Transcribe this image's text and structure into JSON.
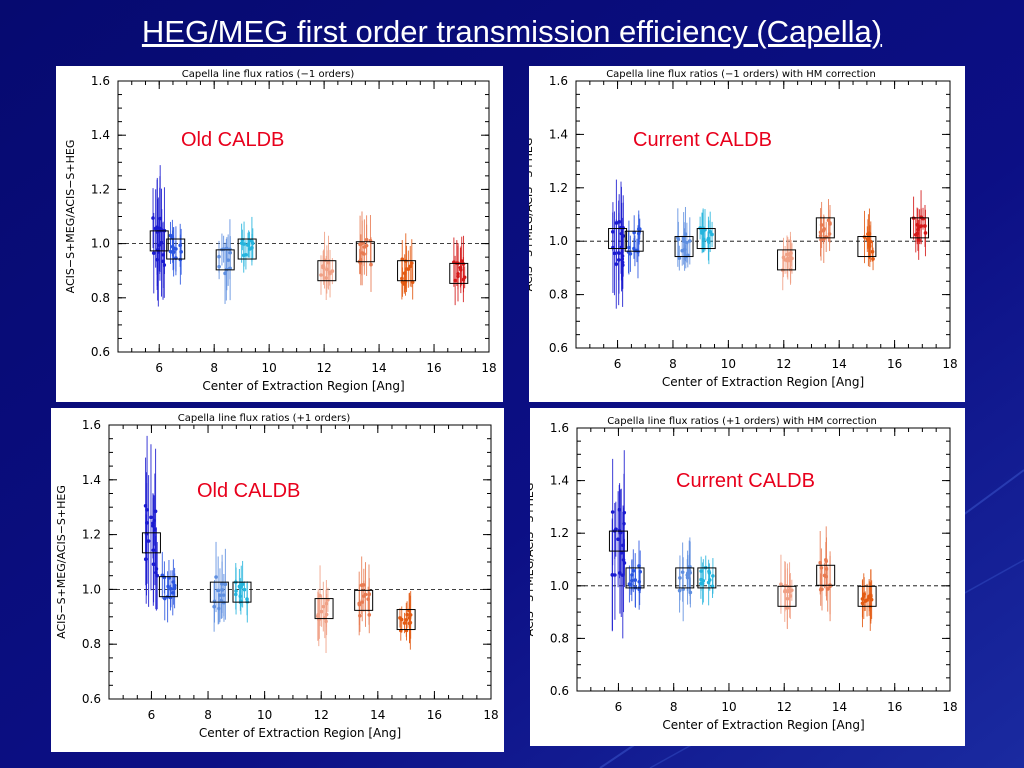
{
  "slide": {
    "title": "HEG/MEG first order transmission efficiency (Capella)",
    "background_color": "#0a0a78",
    "title_color": "#ffffff"
  },
  "annotation_color": "#e8001c",
  "chart_data": [
    {
      "type": "scatter",
      "title": "Capella line flux ratios (−1 orders)",
      "annotation": "Old CALDB",
      "xlabel": "Center of Extraction Region [Ang]",
      "ylabel": "ACIS−S+MEG/ACIS−S+HEG",
      "xlim": [
        4.5,
        18
      ],
      "ylim": [
        0.6,
        1.6
      ],
      "xticks": [
        6,
        8,
        10,
        12,
        14,
        16,
        18
      ],
      "yticks": [
        0.6,
        0.8,
        1.0,
        1.2,
        1.4,
        1.6
      ],
      "reference_line": 1.0,
      "groups": [
        {
          "x": 6.0,
          "mean": 1.01,
          "spread": 0.1,
          "err": 0.14,
          "color": "#1a1ad0"
        },
        {
          "x": 6.6,
          "mean": 0.98,
          "spread": 0.05,
          "err": 0.07,
          "color": "#2a55e0"
        },
        {
          "x": 8.4,
          "mean": 0.94,
          "spread": 0.05,
          "err": 0.08,
          "color": "#5f8fe0"
        },
        {
          "x": 9.2,
          "mean": 0.98,
          "spread": 0.04,
          "err": 0.06,
          "color": "#25b4dd"
        },
        {
          "x": 12.1,
          "mean": 0.9,
          "spread": 0.04,
          "err": 0.07,
          "color": "#f0a085"
        },
        {
          "x": 13.5,
          "mean": 0.97,
          "spread": 0.05,
          "err": 0.08,
          "color": "#e87b52"
        },
        {
          "x": 15.0,
          "mean": 0.9,
          "spread": 0.05,
          "err": 0.07,
          "color": "#e35a12"
        },
        {
          "x": 16.9,
          "mean": 0.89,
          "spread": 0.05,
          "err": 0.07,
          "color": "#d41818"
        }
      ]
    },
    {
      "type": "scatter",
      "title": "Capella line flux ratios (−1 orders) with HM correction",
      "annotation": "Current CALDB",
      "xlabel": "Center of Extraction Region [Ang]",
      "ylabel": "ACIS−S+MEG/ACIS−S+HEG",
      "xlim": [
        4.5,
        18
      ],
      "ylim": [
        0.6,
        1.6
      ],
      "xticks": [
        6,
        8,
        10,
        12,
        14,
        16,
        18
      ],
      "yticks": [
        0.6,
        0.8,
        1.0,
        1.2,
        1.4,
        1.6
      ],
      "reference_line": 1.0,
      "groups": [
        {
          "x": 6.0,
          "mean": 1.01,
          "spread": 0.1,
          "err": 0.14,
          "color": "#1a1ad0"
        },
        {
          "x": 6.6,
          "mean": 1.0,
          "spread": 0.05,
          "err": 0.07,
          "color": "#2a55e0"
        },
        {
          "x": 8.4,
          "mean": 0.98,
          "spread": 0.05,
          "err": 0.08,
          "color": "#5f8fe0"
        },
        {
          "x": 9.2,
          "mean": 1.01,
          "spread": 0.04,
          "err": 0.06,
          "color": "#25b4dd"
        },
        {
          "x": 12.1,
          "mean": 0.93,
          "spread": 0.04,
          "err": 0.07,
          "color": "#f0a085"
        },
        {
          "x": 13.5,
          "mean": 1.05,
          "spread": 0.05,
          "err": 0.08,
          "color": "#e87b52"
        },
        {
          "x": 15.0,
          "mean": 0.98,
          "spread": 0.05,
          "err": 0.07,
          "color": "#e35a12"
        },
        {
          "x": 16.9,
          "mean": 1.05,
          "spread": 0.05,
          "err": 0.07,
          "color": "#d41818"
        }
      ]
    },
    {
      "type": "scatter",
      "title": "Capella line flux ratios (+1 orders)",
      "annotation": "Old CALDB",
      "xlabel": "Center of Extraction Region [Ang]",
      "ylabel": "ACIS−S+MEG/ACIS−S+HEG",
      "xlim": [
        4.5,
        18
      ],
      "ylim": [
        0.6,
        1.6
      ],
      "xticks": [
        6,
        8,
        10,
        12,
        14,
        16,
        18
      ],
      "yticks": [
        0.6,
        0.8,
        1.0,
        1.2,
        1.4,
        1.6
      ],
      "reference_line": 1.0,
      "groups": [
        {
          "x": 6.0,
          "mean": 1.17,
          "spread": 0.14,
          "err": 0.18,
          "color": "#1a1ad0"
        },
        {
          "x": 6.6,
          "mean": 1.01,
          "spread": 0.05,
          "err": 0.07,
          "color": "#2a55e0"
        },
        {
          "x": 8.4,
          "mean": 0.99,
          "spread": 0.06,
          "err": 0.09,
          "color": "#5f8fe0"
        },
        {
          "x": 9.2,
          "mean": 0.99,
          "spread": 0.04,
          "err": 0.06,
          "color": "#25b4dd"
        },
        {
          "x": 12.1,
          "mean": 0.93,
          "spread": 0.05,
          "err": 0.08,
          "color": "#f0a085"
        },
        {
          "x": 13.5,
          "mean": 0.96,
          "spread": 0.06,
          "err": 0.09,
          "color": "#e87b52"
        },
        {
          "x": 15.0,
          "mean": 0.89,
          "spread": 0.05,
          "err": 0.07,
          "color": "#e35a12"
        }
      ]
    },
    {
      "type": "scatter",
      "title": "Capella line flux ratios (+1 orders) with HM correction",
      "annotation": "Current CALDB",
      "xlabel": "Center of Extraction Region [Ang]",
      "ylabel": "ACIS−S+MEG/ACIS−S+HEG",
      "xlim": [
        4.5,
        18
      ],
      "ylim": [
        0.6,
        1.6
      ],
      "xticks": [
        6,
        8,
        10,
        12,
        14,
        16,
        18
      ],
      "yticks": [
        0.6,
        0.8,
        1.0,
        1.2,
        1.4,
        1.6
      ],
      "reference_line": 1.0,
      "groups": [
        {
          "x": 6.0,
          "mean": 1.17,
          "spread": 0.14,
          "err": 0.18,
          "color": "#1a1ad0"
        },
        {
          "x": 6.6,
          "mean": 1.03,
          "spread": 0.05,
          "err": 0.07,
          "color": "#2a55e0"
        },
        {
          "x": 8.4,
          "mean": 1.03,
          "spread": 0.06,
          "err": 0.09,
          "color": "#5f8fe0"
        },
        {
          "x": 9.2,
          "mean": 1.03,
          "spread": 0.04,
          "err": 0.06,
          "color": "#25b4dd"
        },
        {
          "x": 12.1,
          "mean": 0.96,
          "spread": 0.05,
          "err": 0.08,
          "color": "#f0a085"
        },
        {
          "x": 13.5,
          "mean": 1.04,
          "spread": 0.06,
          "err": 0.09,
          "color": "#e87b52"
        },
        {
          "x": 15.0,
          "mean": 0.96,
          "spread": 0.05,
          "err": 0.07,
          "color": "#e35a12"
        }
      ]
    }
  ]
}
